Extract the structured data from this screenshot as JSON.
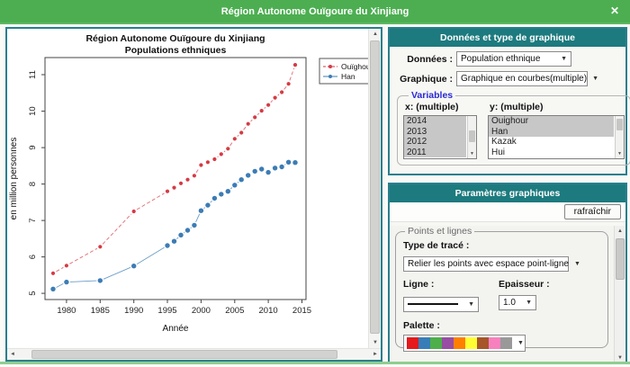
{
  "window": {
    "title": "Région Autonome Ouïgoure du Xinjiang"
  },
  "icons": {
    "close": "✕",
    "up": "▲",
    "down": "▼",
    "left": "◄",
    "right": "►",
    "select": "▼"
  },
  "chart_data": {
    "type": "line",
    "title": "Région Autonome Ouïgoure du Xinjiang",
    "subtitle": "Populations ethniques",
    "xlabel": "Année",
    "ylabel": "en million personnes",
    "grid": false,
    "legend_position": "top-right",
    "xlim": [
      1976.8,
      2015.6
    ],
    "ylim": [
      4.83,
      11.47
    ],
    "xticks": [
      1980,
      1985,
      1990,
      1995,
      2000,
      2005,
      2010,
      2015
    ],
    "yticks": [
      5,
      6,
      7,
      8,
      9,
      10,
      11
    ],
    "x": [
      1978,
      1980,
      1985,
      1990,
      1995,
      1996,
      1997,
      1998,
      1999,
      2000,
      2001,
      2002,
      2003,
      2004,
      2005,
      2006,
      2007,
      2008,
      2009,
      2010,
      2011,
      2012,
      2013,
      2014
    ],
    "series": [
      {
        "name": "Ouïghour",
        "color": "#d63a44",
        "dash": "4 2.5",
        "marker_radius": 2.1,
        "values": [
          5.55,
          5.76,
          6.28,
          7.25,
          7.8,
          7.9,
          8.02,
          8.12,
          8.23,
          8.52,
          8.6,
          8.68,
          8.82,
          8.97,
          9.24,
          9.41,
          9.65,
          9.83,
          10.01,
          10.17,
          10.37,
          10.52,
          10.75,
          11.27
        ]
      },
      {
        "name": "Han",
        "color": "#3c7cb5",
        "dash": "",
        "marker_radius": 2.7,
        "values": [
          5.12,
          5.31,
          5.35,
          5.75,
          6.31,
          6.43,
          6.6,
          6.73,
          6.87,
          7.27,
          7.42,
          7.61,
          7.72,
          7.8,
          7.97,
          8.12,
          8.24,
          8.35,
          8.41,
          8.32,
          8.44,
          8.47,
          8.6,
          8.59
        ]
      }
    ]
  },
  "data_panel": {
    "header": "Données et type de graphique",
    "donnees_label": "Données :",
    "donnees_value": "Population ethnique",
    "graphique_label": "Graphique :",
    "graphique_value": "Graphique en courbes(multiple)",
    "variables": {
      "legend": "Variables",
      "x_label": "x: (multiple)",
      "x_items": [
        {
          "label": "2014",
          "selected": true
        },
        {
          "label": "2013",
          "selected": true
        },
        {
          "label": "2012",
          "selected": true
        },
        {
          "label": "2011",
          "selected": true
        }
      ],
      "y_label": "y: (multiple)",
      "y_items": [
        {
          "label": "Ouighour",
          "selected": true
        },
        {
          "label": "Han",
          "selected": true
        },
        {
          "label": "Kazak",
          "selected": false
        },
        {
          "label": "Hui",
          "selected": false
        }
      ]
    }
  },
  "params_panel": {
    "header": "Paramètres graphiques",
    "refresh_label": "rafraîchir",
    "fieldset": "Points et lignes",
    "trace_label": "Type de tracé :",
    "trace_value": "Relier les points avec espace point-ligne",
    "ligne_label": "Ligne :",
    "epaisseur_label": "Epaisseur :",
    "epaisseur_value": "1.0",
    "palette_label": "Palette :",
    "palette_colors": [
      "#e41a1c",
      "#377eb8",
      "#4daf4a",
      "#984ea3",
      "#ff7f00",
      "#ffff33",
      "#a65628",
      "#f781bf",
      "#999999"
    ]
  }
}
